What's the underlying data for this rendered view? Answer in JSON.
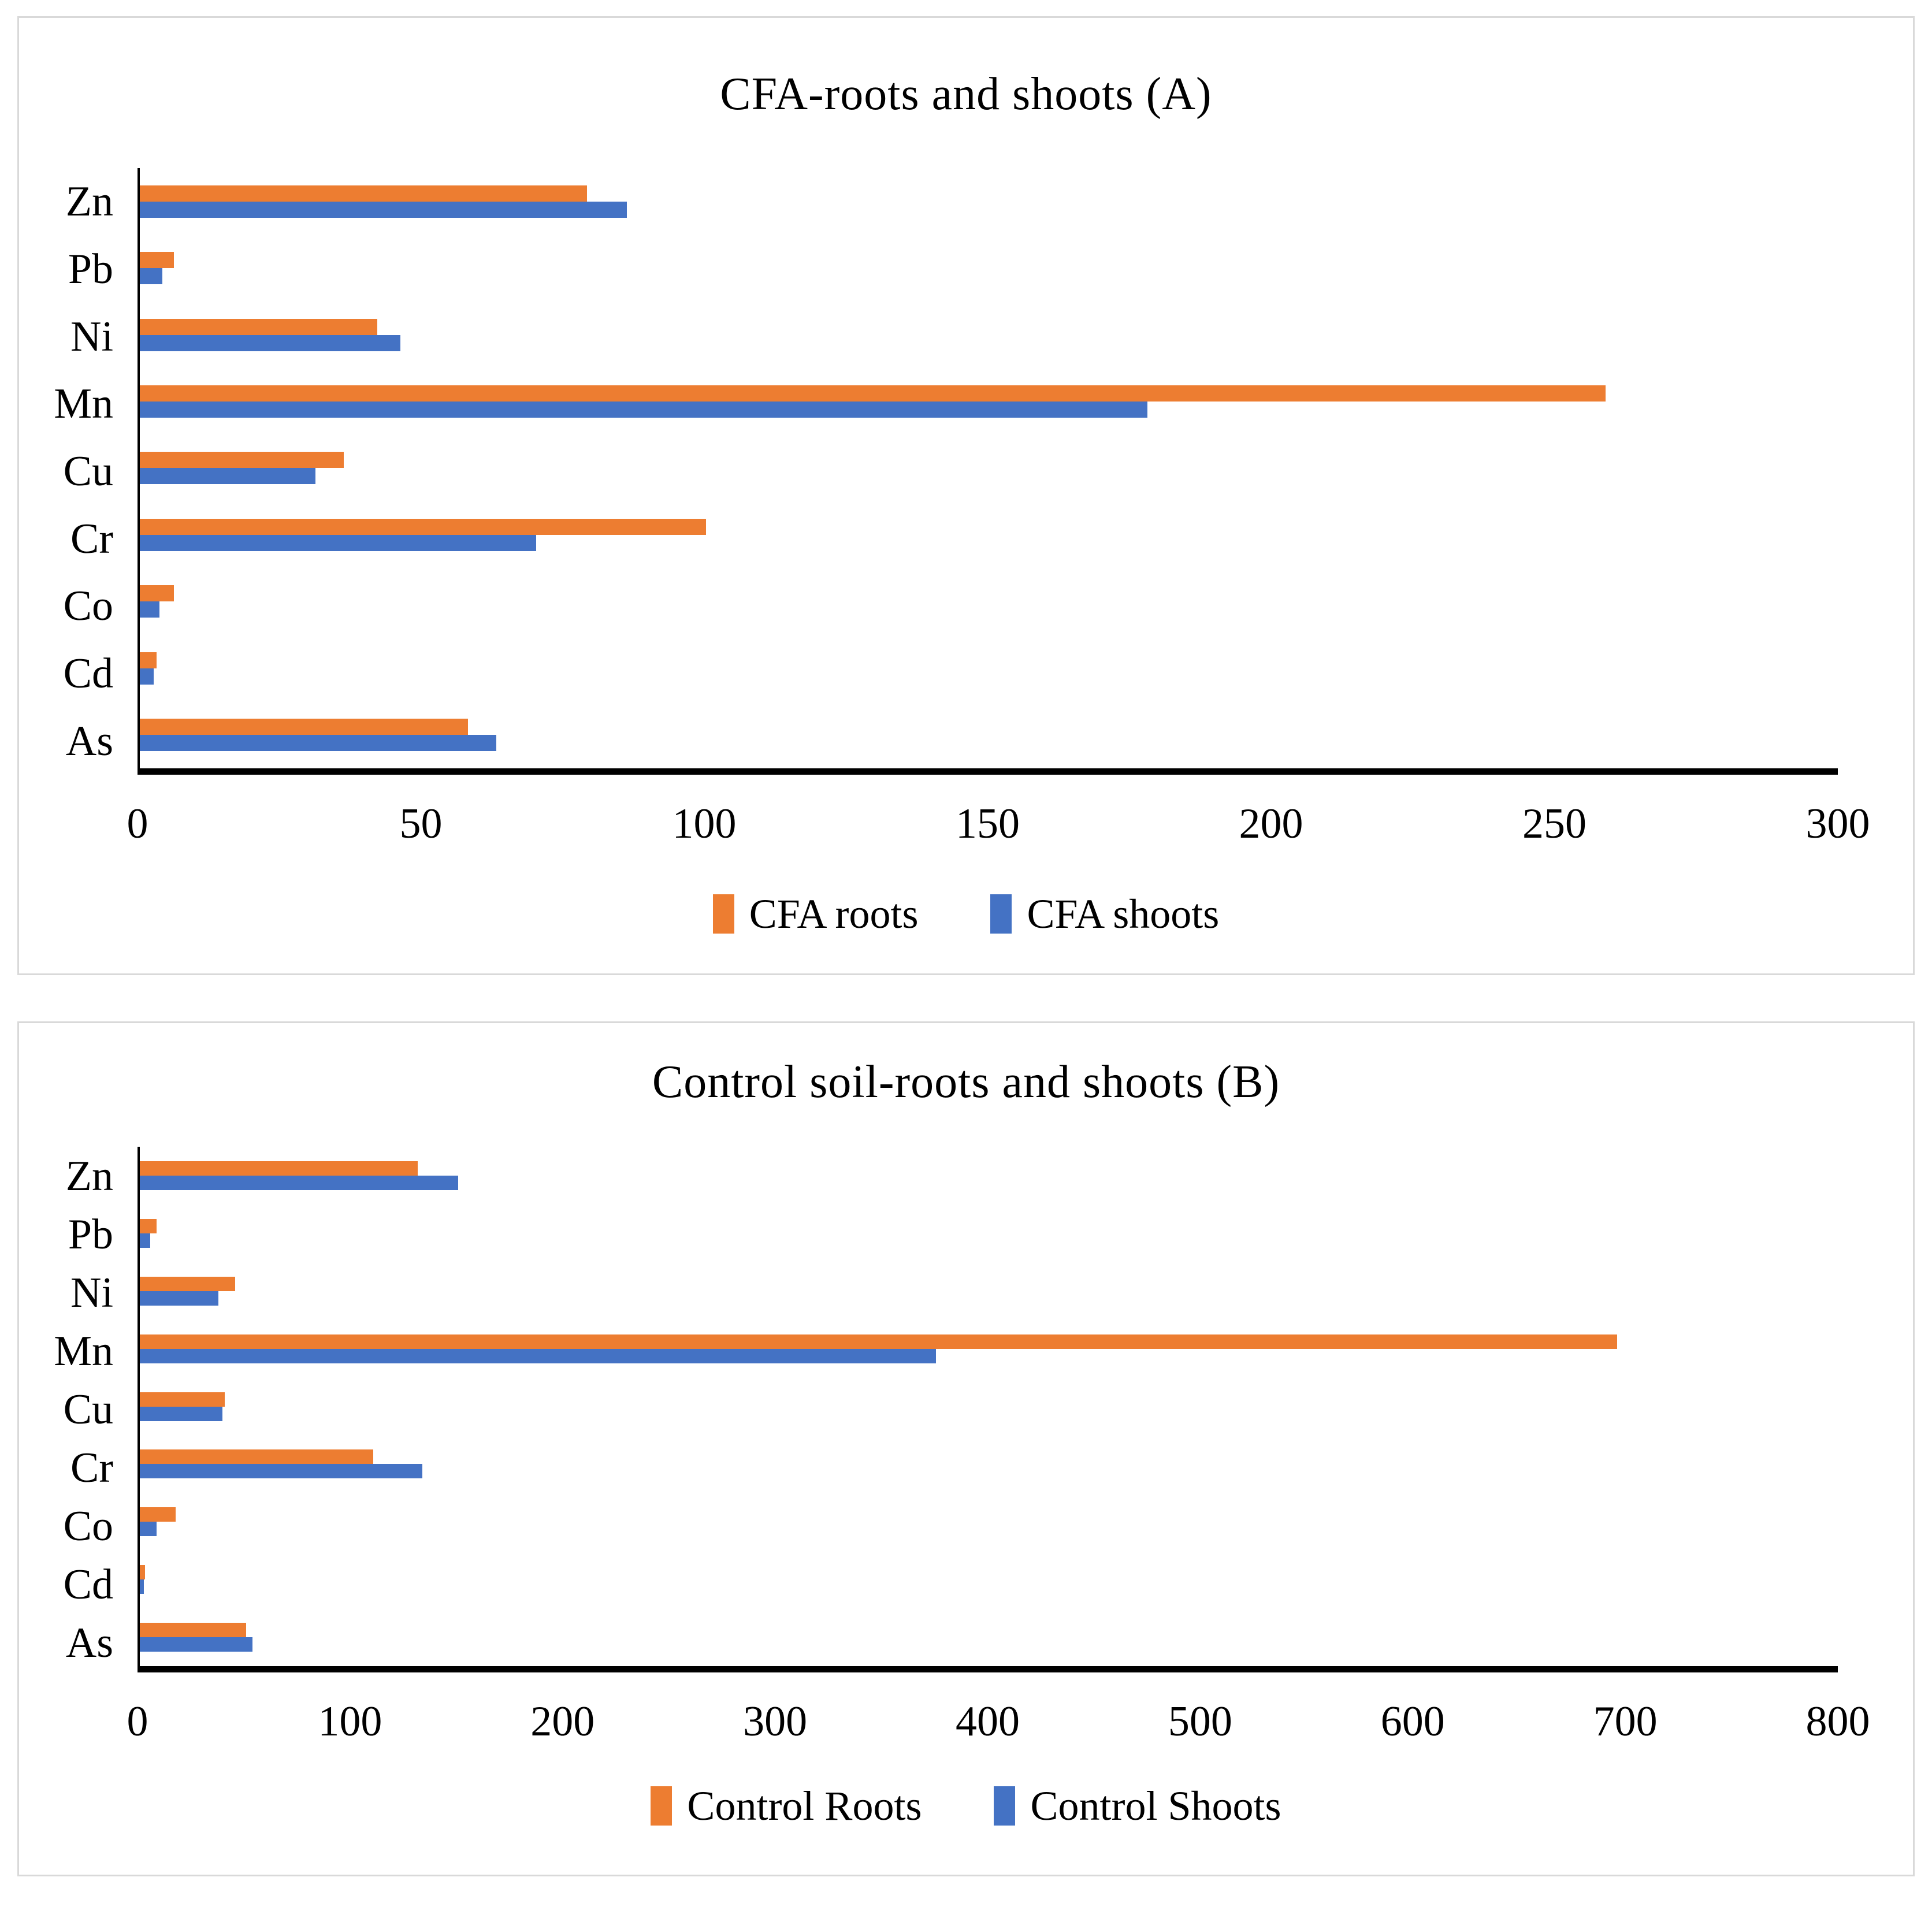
{
  "colors": {
    "roots": "#ED7D31",
    "shoots": "#4472C4",
    "axis": "#000000",
    "panel_border": "#D9D9D9",
    "background": "#FFFFFF"
  },
  "chart_data": [
    {
      "type": "bar",
      "orientation": "horizontal",
      "title": "CFA-roots and shoots (A)",
      "categories": [
        "Zn",
        "Pb",
        "Ni",
        "Mn",
        "Cu",
        "Cr",
        "Co",
        "Cd",
        "As"
      ],
      "series": [
        {
          "name": "CFA roots",
          "color_key": "roots",
          "values": [
            79,
            6,
            42,
            259,
            36,
            100,
            6,
            3,
            58
          ]
        },
        {
          "name": "CFA shoots",
          "color_key": "shoots",
          "values": [
            86,
            4,
            46,
            178,
            31,
            70,
            3.5,
            2.5,
            63
          ]
        }
      ],
      "xlim": [
        0,
        300
      ],
      "xticks": [
        0,
        50,
        100,
        150,
        200,
        250,
        300
      ],
      "grid": false,
      "legend_position": "bottom"
    },
    {
      "type": "bar",
      "orientation": "horizontal",
      "title": "Control soil-roots and shoots (B)",
      "categories": [
        "Zn",
        "Pb",
        "Ni",
        "Mn",
        "Cu",
        "Cr",
        "Co",
        "Cd",
        "As"
      ],
      "series": [
        {
          "name": "Control Roots",
          "color_key": "roots",
          "values": [
            131,
            8,
            45,
            696,
            40,
            110,
            17,
            2.5,
            50
          ]
        },
        {
          "name": "Control Shoots",
          "color_key": "shoots",
          "values": [
            150,
            5,
            37,
            375,
            39,
            133,
            8,
            2,
            53
          ]
        }
      ],
      "xlim": [
        0,
        800
      ],
      "xticks": [
        0,
        100,
        200,
        300,
        400,
        500,
        600,
        700,
        800
      ],
      "grid": false,
      "legend_position": "bottom"
    }
  ]
}
